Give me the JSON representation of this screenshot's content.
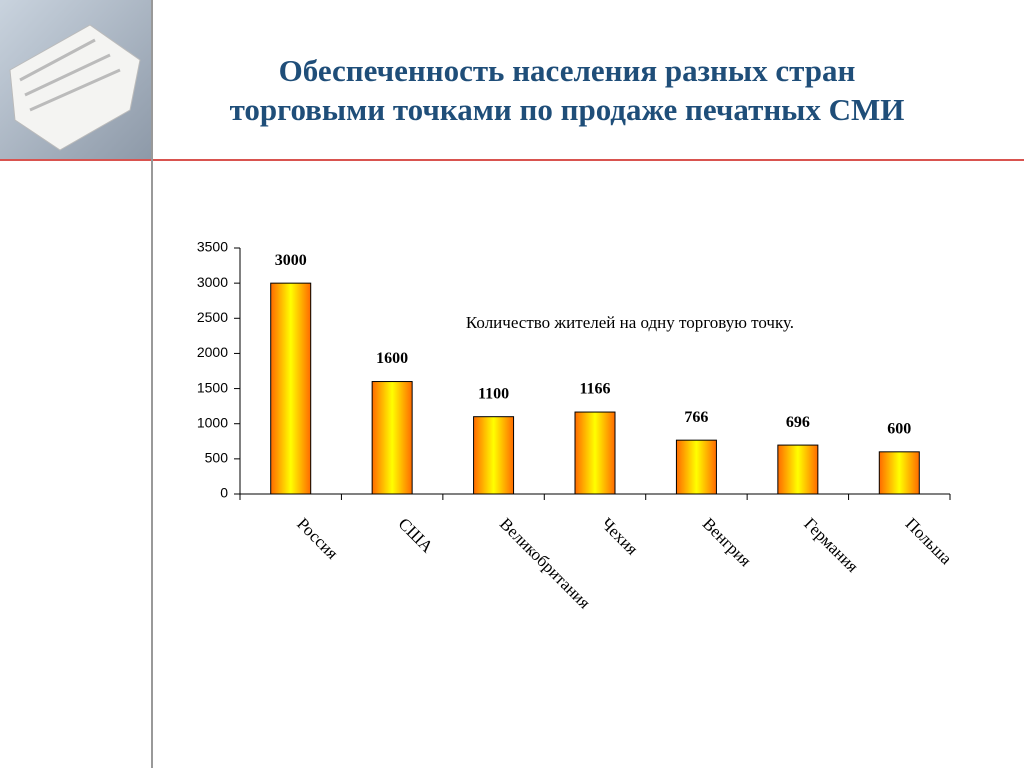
{
  "chart_data": {
    "type": "bar",
    "title": [
      "Обеспеченность населения разных стран",
      "торговыми точками по продаже печатных СМИ"
    ],
    "annotation": "Количество жителей на одну торговую точку.",
    "categories": [
      "Россия",
      "США",
      "Великобритания",
      "Чехия",
      "Венгрия",
      "Германия",
      "Польша"
    ],
    "values": [
      3000,
      1600,
      1100,
      1166,
      766,
      696,
      600
    ],
    "color": [
      "#ff6a00",
      "#ffff00"
    ],
    "ylim": [
      0,
      3500
    ],
    "yticks": [
      0,
      500,
      1000,
      1500,
      2000,
      2500,
      3000,
      3500
    ],
    "grid": false
  }
}
